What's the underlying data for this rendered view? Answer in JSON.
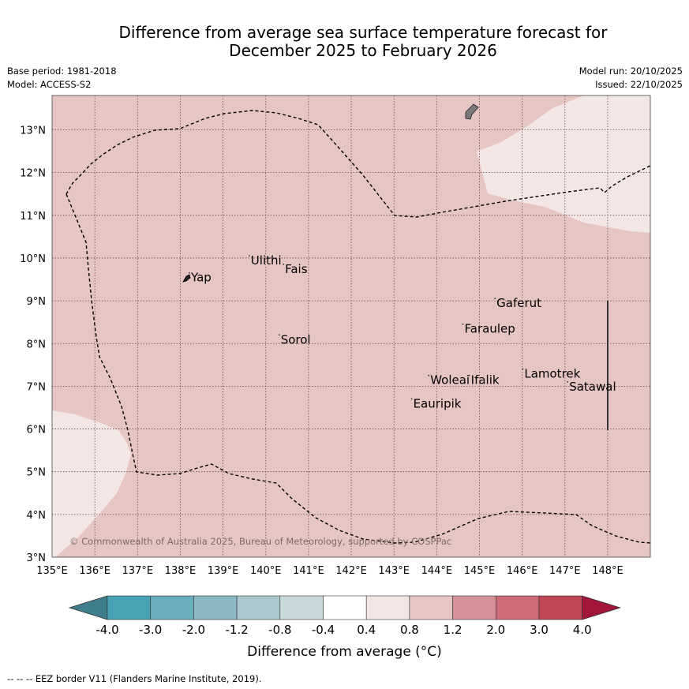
{
  "title": {
    "line1": "Difference from average sea surface temperature forecast for",
    "line2": "December 2025 to February 2026"
  },
  "meta": {
    "base_period": "Base period: 1981-2018",
    "model": "Model: ACCESS-S2",
    "model_run": "Model run: 20/10/2025",
    "issued": "Issued: 22/10/2025"
  },
  "map": {
    "lon_range": [
      135,
      149
    ],
    "lat_range": [
      3,
      13.8
    ],
    "lon_ticks": [
      "135°E",
      "136°E",
      "137°E",
      "138°E",
      "139°E",
      "140°E",
      "141°E",
      "142°E",
      "143°E",
      "144°E",
      "145°E",
      "146°E",
      "147°E",
      "148°E"
    ],
    "lat_ticks": [
      "3°N",
      "4°N",
      "5°N",
      "6°N",
      "7°N",
      "8°N",
      "9°N",
      "10°N",
      "11°N",
      "12°N",
      "13°N"
    ],
    "places": [
      {
        "name": "Yap",
        "lon": 138.25,
        "lat": 9.45
      },
      {
        "name": "Ulithi",
        "lon": 139.65,
        "lat": 9.85
      },
      {
        "name": "Fais",
        "lon": 140.45,
        "lat": 9.65
      },
      {
        "name": "Gaferut",
        "lon": 145.4,
        "lat": 8.85
      },
      {
        "name": "Faraulep",
        "lon": 144.65,
        "lat": 8.25
      },
      {
        "name": "Sorol",
        "lon": 140.35,
        "lat": 8.0
      },
      {
        "name": "Lamotrek",
        "lon": 146.05,
        "lat": 7.2
      },
      {
        "name": "Woleai",
        "lon": 143.85,
        "lat": 7.05
      },
      {
        "name": "Ifalik",
        "lon": 144.8,
        "lat": 7.05
      },
      {
        "name": "Satawal",
        "lon": 147.1,
        "lat": 6.9
      },
      {
        "name": "Eauripik",
        "lon": 143.45,
        "lat": 6.5
      }
    ],
    "copyright": "© Commonwealth of Australia 2025, Bureau of Meteorology, supported by COSPPac",
    "fill_colors": {
      "background": "#e6c6c3",
      "light": "#f3e7e6",
      "grid": "#6b4a4a"
    }
  },
  "colorbar": {
    "labels": [
      "-4.0",
      "-3.0",
      "-2.0",
      "-1.2",
      "-0.8",
      "-0.4",
      "0.4",
      "0.8",
      "1.2",
      "2.0",
      "3.0",
      "4.0"
    ],
    "colors": [
      "#3e7e8a",
      "#48a2b3",
      "#6aaebd",
      "#8ab8c3",
      "#aac8ce",
      "#c8d9dc",
      "#ffffff",
      "#f3e7e6",
      "#e6c6c3",
      "#d69197",
      "#cc6a76",
      "#c04656",
      "#a3163a"
    ],
    "title": "Difference from average (°C)"
  },
  "footnote": "-- -- -- EEZ border V11 (Flanders Marine Institute, 2019)."
}
